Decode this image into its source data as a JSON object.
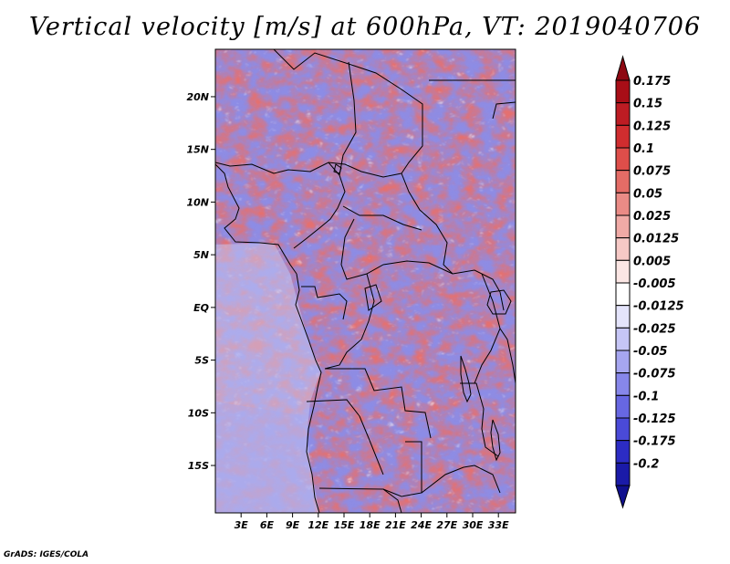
{
  "title": "Vertical velocity [m/s] at 600hPa, VT: 2019040706",
  "credit": "GrADS: IGES/COLA",
  "map": {
    "lon_range": [
      0,
      35
    ],
    "lat_range": [
      -19.5,
      24.5
    ],
    "lat_ticks": [
      {
        "value": 20,
        "label": "20N"
      },
      {
        "value": 15,
        "label": "15N"
      },
      {
        "value": 10,
        "label": "10N"
      },
      {
        "value": 5,
        "label": "5N"
      },
      {
        "value": 0,
        "label": "EQ"
      },
      {
        "value": -5,
        "label": "5S"
      },
      {
        "value": -10,
        "label": "10S"
      },
      {
        "value": -15,
        "label": "15S"
      }
    ],
    "lon_ticks": [
      {
        "value": 3,
        "label": "3E"
      },
      {
        "value": 6,
        "label": "6E"
      },
      {
        "value": 9,
        "label": "9E"
      },
      {
        "value": 12,
        "label": "12E"
      },
      {
        "value": 15,
        "label": "15E"
      },
      {
        "value": 18,
        "label": "18E"
      },
      {
        "value": 21,
        "label": "21E"
      },
      {
        "value": 24,
        "label": "24E"
      },
      {
        "value": 27,
        "label": "27E"
      },
      {
        "value": 30,
        "label": "30E"
      },
      {
        "value": 33,
        "label": "33E"
      }
    ]
  },
  "colorbar": {
    "levels": [
      {
        "label": "0.175",
        "color": "#a80e17"
      },
      {
        "label": "0.15",
        "color": "#bd1c23"
      },
      {
        "label": "0.125",
        "color": "#d02d2f"
      },
      {
        "label": "0.1",
        "color": "#de4e4a"
      },
      {
        "label": "0.075",
        "color": "#e46c66"
      },
      {
        "label": "0.05",
        "color": "#ea8b86"
      },
      {
        "label": "0.025",
        "color": "#f0aaa6"
      },
      {
        "label": "0.0125",
        "color": "#f6c9c6"
      },
      {
        "label": "0.005",
        "color": "#fbe6e4"
      },
      {
        "label": "-0.005",
        "color": "#ffffff"
      },
      {
        "label": "-0.0125",
        "color": "#e4e4fb"
      },
      {
        "label": "-0.025",
        "color": "#c6c6f6"
      },
      {
        "label": "-0.05",
        "color": "#a6a6f0"
      },
      {
        "label": "-0.075",
        "color": "#8787ea"
      },
      {
        "label": "-0.1",
        "color": "#6767e2"
      },
      {
        "label": "-0.125",
        "color": "#4a4ad8"
      },
      {
        "label": "-0.175",
        "color": "#2c2cc4"
      },
      {
        "label": "-0.2",
        "color": "#1a1aa8"
      }
    ],
    "top_arrow_color": "#8e0812",
    "bottom_arrow_color": "#10108e"
  }
}
